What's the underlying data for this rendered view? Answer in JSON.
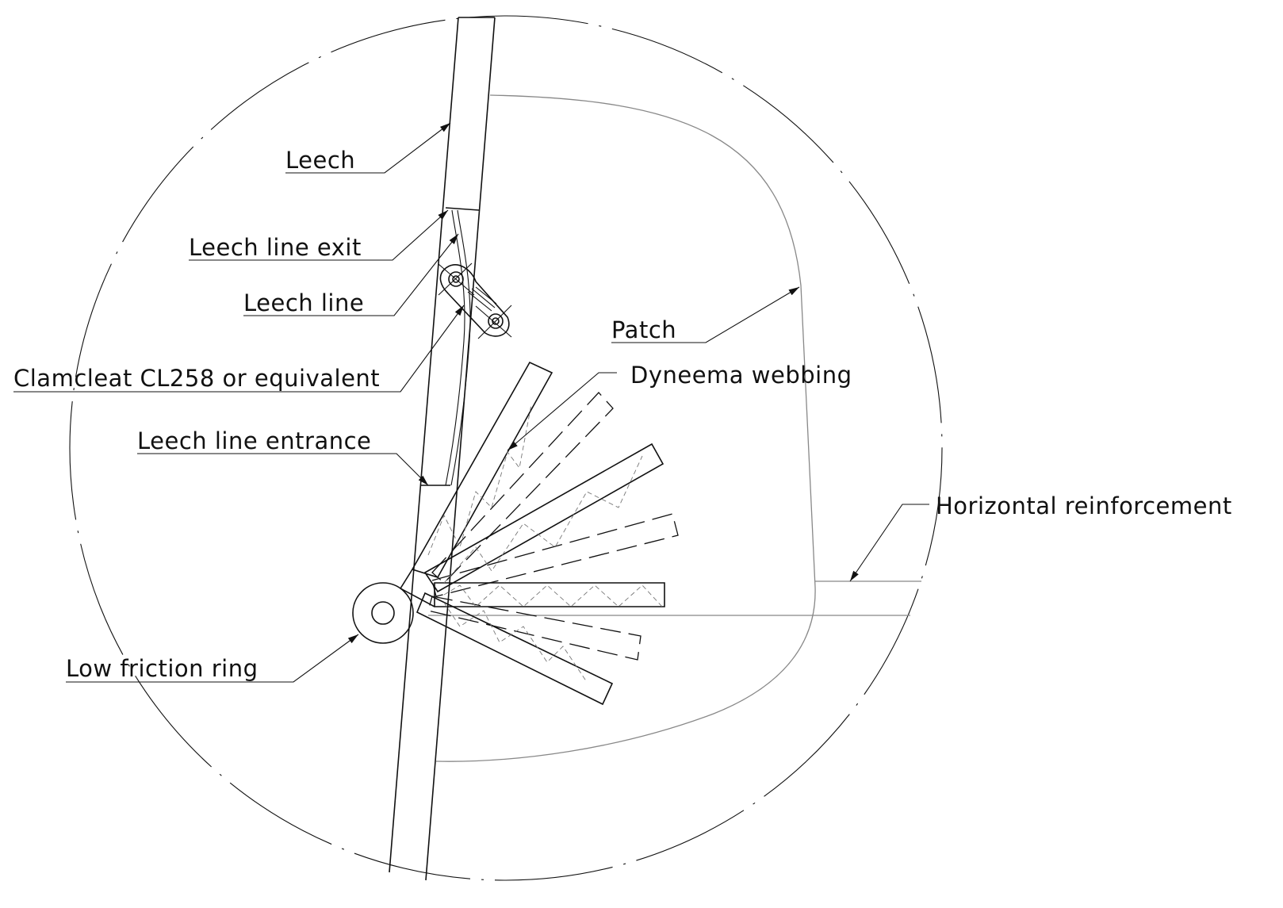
{
  "callouts": [
    {
      "text": "Leech"
    },
    {
      "text": "Leech line exit"
    },
    {
      "text": "Leech line"
    },
    {
      "text": "Clamcleat CL258 or equivalent"
    },
    {
      "text": "Leech line entrance"
    },
    {
      "text": "Patch"
    },
    {
      "text": "Dyneema webbing"
    },
    {
      "text": "Horizontal reinforcement"
    },
    {
      "text": "Low friction ring"
    }
  ]
}
